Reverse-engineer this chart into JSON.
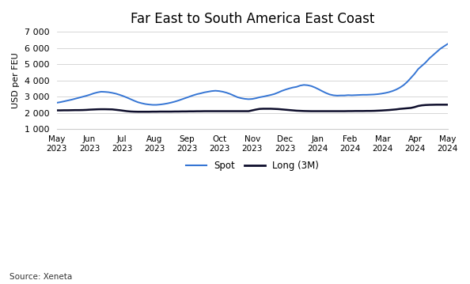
{
  "title": "Far East to South America East Coast",
  "ylabel": "USD per FEU",
  "source": "Source: Xeneta",
  "ylim": [
    1000,
    7000
  ],
  "yticks": [
    1000,
    2000,
    3000,
    4000,
    5000,
    6000,
    7000
  ],
  "ytick_labels": [
    "1 000",
    "2 000",
    "3 000",
    "4 000",
    "5 000",
    "6 000",
    "7 000"
  ],
  "background_color": "#ffffff",
  "spot_color": "#3575d4",
  "long_color": "#0d0d2b",
  "x_labels_top": [
    "May",
    "Jun",
    "Jul",
    "Aug",
    "Sep",
    "Oct",
    "Nov",
    "Dec",
    "Jan",
    "Feb",
    "Mar",
    "Apr",
    "May"
  ],
  "x_labels_bot": [
    "2023",
    "2023",
    "2023",
    "2023",
    "2023",
    "2023",
    "2023",
    "2023",
    "2024",
    "2024",
    "2024",
    "2024",
    "2024"
  ],
  "spot": [
    2620,
    2660,
    2710,
    2760,
    2810,
    2870,
    2930,
    2990,
    3050,
    3120,
    3200,
    3260,
    3300,
    3290,
    3270,
    3230,
    3180,
    3110,
    3030,
    2940,
    2840,
    2740,
    2650,
    2590,
    2540,
    2510,
    2490,
    2490,
    2510,
    2540,
    2580,
    2630,
    2690,
    2760,
    2840,
    2920,
    3000,
    3080,
    3150,
    3200,
    3260,
    3300,
    3340,
    3360,
    3340,
    3300,
    3240,
    3160,
    3060,
    2960,
    2900,
    2860,
    2840,
    2855,
    2900,
    2960,
    3000,
    3050,
    3100,
    3160,
    3250,
    3350,
    3430,
    3500,
    3560,
    3600,
    3680,
    3720,
    3700,
    3650,
    3560,
    3450,
    3330,
    3220,
    3130,
    3080,
    3060,
    3070,
    3070,
    3090,
    3080,
    3090,
    3100,
    3110,
    3110,
    3120,
    3130,
    3150,
    3180,
    3220,
    3270,
    3340,
    3430,
    3550,
    3700,
    3900,
    4150,
    4400,
    4700,
    4900,
    5100,
    5350,
    5550,
    5750,
    5950,
    6100,
    6250
  ],
  "long3m": [
    2150,
    2150,
    2155,
    2155,
    2160,
    2165,
    2165,
    2170,
    2180,
    2195,
    2205,
    2215,
    2220,
    2220,
    2215,
    2210,
    2185,
    2160,
    2130,
    2100,
    2080,
    2070,
    2065,
    2065,
    2065,
    2065,
    2070,
    2070,
    2075,
    2075,
    2075,
    2075,
    2080,
    2080,
    2085,
    2085,
    2090,
    2090,
    2095,
    2095,
    2100,
    2100,
    2100,
    2100,
    2100,
    2100,
    2100,
    2100,
    2100,
    2100,
    2100,
    2100,
    2100,
    2150,
    2200,
    2240,
    2250,
    2250,
    2250,
    2240,
    2230,
    2210,
    2190,
    2170,
    2150,
    2130,
    2120,
    2110,
    2105,
    2100,
    2100,
    2100,
    2100,
    2100,
    2100,
    2100,
    2100,
    2100,
    2100,
    2105,
    2105,
    2110,
    2110,
    2110,
    2115,
    2115,
    2120,
    2130,
    2140,
    2155,
    2170,
    2190,
    2210,
    2240,
    2260,
    2280,
    2300,
    2350,
    2420,
    2460,
    2480,
    2490,
    2495,
    2500,
    2500,
    2500,
    2500
  ]
}
